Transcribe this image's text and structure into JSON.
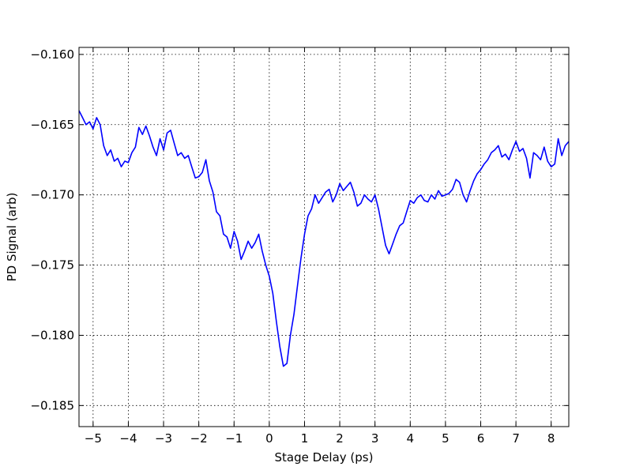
{
  "chart_data": {
    "type": "line",
    "xlabel": "Stage Delay (ps)",
    "ylabel": "PD Signal (arb)",
    "xlim": [
      -5.4,
      8.5
    ],
    "ylim": [
      -0.1865,
      -0.1595
    ],
    "xticks": [
      -5,
      -4,
      -3,
      -2,
      -1,
      0,
      1,
      2,
      3,
      4,
      5,
      6,
      7,
      8
    ],
    "xtick_labels": [
      "−5",
      "−4",
      "−3",
      "−2",
      "−1",
      "0",
      "1",
      "2",
      "3",
      "4",
      "5",
      "6",
      "7",
      "8"
    ],
    "yticks": [
      -0.185,
      -0.18,
      -0.175,
      -0.17,
      -0.165,
      -0.16
    ],
    "ytick_labels": [
      "−0.185",
      "−0.180",
      "−0.175",
      "−0.170",
      "−0.165",
      "−0.160"
    ],
    "grid": true,
    "series": [
      {
        "color": "#0000ff",
        "x": [
          -5.4,
          -5.3,
          -5.2,
          -5.1,
          -5.0,
          -4.9,
          -4.8,
          -4.7,
          -4.6,
          -4.5,
          -4.4,
          -4.3,
          -4.2,
          -4.1,
          -4.0,
          -3.9,
          -3.8,
          -3.7,
          -3.6,
          -3.5,
          -3.4,
          -3.3,
          -3.2,
          -3.1,
          -3.0,
          -2.9,
          -2.8,
          -2.7,
          -2.6,
          -2.5,
          -2.4,
          -2.3,
          -2.2,
          -2.1,
          -2.0,
          -1.9,
          -1.8,
          -1.7,
          -1.6,
          -1.5,
          -1.4,
          -1.3,
          -1.2,
          -1.1,
          -1.0,
          -0.9,
          -0.8,
          -0.7,
          -0.6,
          -0.5,
          -0.4,
          -0.3,
          -0.2,
          -0.1,
          0.0,
          0.1,
          0.2,
          0.3,
          0.4,
          0.5,
          0.6,
          0.7,
          0.8,
          0.9,
          1.0,
          1.1,
          1.2,
          1.3,
          1.4,
          1.5,
          1.6,
          1.7,
          1.8,
          1.9,
          2.0,
          2.1,
          2.2,
          2.3,
          2.4,
          2.5,
          2.6,
          2.7,
          2.8,
          2.9,
          3.0,
          3.1,
          3.2,
          3.3,
          3.4,
          3.5,
          3.6,
          3.7,
          3.8,
          3.9,
          4.0,
          4.1,
          4.2,
          4.3,
          4.4,
          4.5,
          4.6,
          4.7,
          4.8,
          4.9,
          5.0,
          5.1,
          5.2,
          5.3,
          5.4,
          5.5,
          5.6,
          5.7,
          5.8,
          5.9,
          6.0,
          6.1,
          6.2,
          6.3,
          6.4,
          6.5,
          6.6,
          6.7,
          6.8,
          6.9,
          7.0,
          7.1,
          7.2,
          7.3,
          7.4,
          7.5,
          7.6,
          7.7,
          7.8,
          7.9,
          8.0,
          8.1,
          8.2,
          8.3,
          8.4,
          8.5
        ],
        "y": [
          -0.164,
          -0.1645,
          -0.165,
          -0.1648,
          -0.1653,
          -0.1645,
          -0.165,
          -0.1665,
          -0.1672,
          -0.1668,
          -0.1676,
          -0.1674,
          -0.168,
          -0.1676,
          -0.1677,
          -0.167,
          -0.1666,
          -0.1652,
          -0.1657,
          -0.1651,
          -0.1658,
          -0.1666,
          -0.1672,
          -0.166,
          -0.1668,
          -0.1656,
          -0.1654,
          -0.1663,
          -0.1672,
          -0.167,
          -0.1674,
          -0.1672,
          -0.168,
          -0.1688,
          -0.1687,
          -0.1684,
          -0.1675,
          -0.169,
          -0.1698,
          -0.1712,
          -0.1715,
          -0.1728,
          -0.173,
          -0.1738,
          -0.1726,
          -0.1733,
          -0.1746,
          -0.174,
          -0.1733,
          -0.1738,
          -0.1734,
          -0.1728,
          -0.174,
          -0.175,
          -0.1758,
          -0.177,
          -0.179,
          -0.1808,
          -0.1822,
          -0.182,
          -0.18,
          -0.1785,
          -0.1765,
          -0.1745,
          -0.1728,
          -0.1715,
          -0.171,
          -0.17,
          -0.1706,
          -0.1702,
          -0.1698,
          -0.1696,
          -0.1705,
          -0.17,
          -0.1692,
          -0.1697,
          -0.1694,
          -0.1691,
          -0.1698,
          -0.1708,
          -0.1706,
          -0.17,
          -0.1703,
          -0.1705,
          -0.17,
          -0.171,
          -0.1723,
          -0.1736,
          -0.1742,
          -0.1735,
          -0.1728,
          -0.1722,
          -0.172,
          -0.1712,
          -0.1704,
          -0.1706,
          -0.1702,
          -0.17,
          -0.1704,
          -0.1705,
          -0.17,
          -0.1703,
          -0.1697,
          -0.1701,
          -0.17,
          -0.1699,
          -0.1696,
          -0.1689,
          -0.1691,
          -0.17,
          -0.1705,
          -0.1697,
          -0.169,
          -0.1685,
          -0.1682,
          -0.1678,
          -0.1675,
          -0.167,
          -0.1668,
          -0.1665,
          -0.1673,
          -0.1671,
          -0.1675,
          -0.1668,
          -0.1662,
          -0.1669,
          -0.1667,
          -0.1674,
          -0.1688,
          -0.167,
          -0.1672,
          -0.1675,
          -0.1666,
          -0.1676,
          -0.168,
          -0.1678,
          -0.166,
          -0.1672,
          -0.1665,
          -0.1662
        ]
      }
    ]
  }
}
